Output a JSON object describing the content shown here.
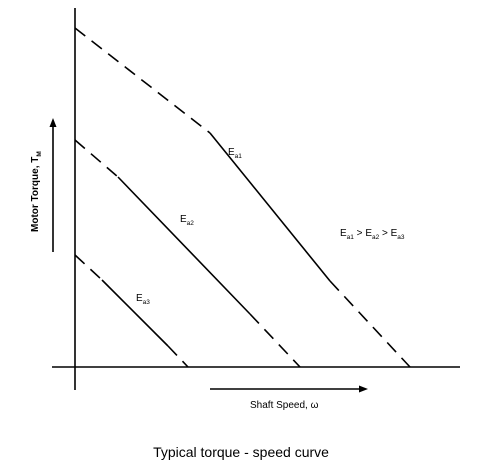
{
  "diagram": {
    "caption": "Typical torque - speed curve",
    "y_axis_label": "Motor Torque, T",
    "y_axis_sub": "M",
    "x_axis_label": "Shaft Speed, ω",
    "curves": [
      {
        "main": "E",
        "sub": "a1"
      },
      {
        "main": "E",
        "sub": "a2"
      },
      {
        "main": "E",
        "sub": "a3"
      }
    ],
    "relation": [
      {
        "main": "E",
        "sub": "a1"
      },
      {
        "text": " > "
      },
      {
        "main": "E",
        "sub": "a2"
      },
      {
        "text": " > "
      },
      {
        "main": "E",
        "sub": "a3"
      }
    ]
  }
}
